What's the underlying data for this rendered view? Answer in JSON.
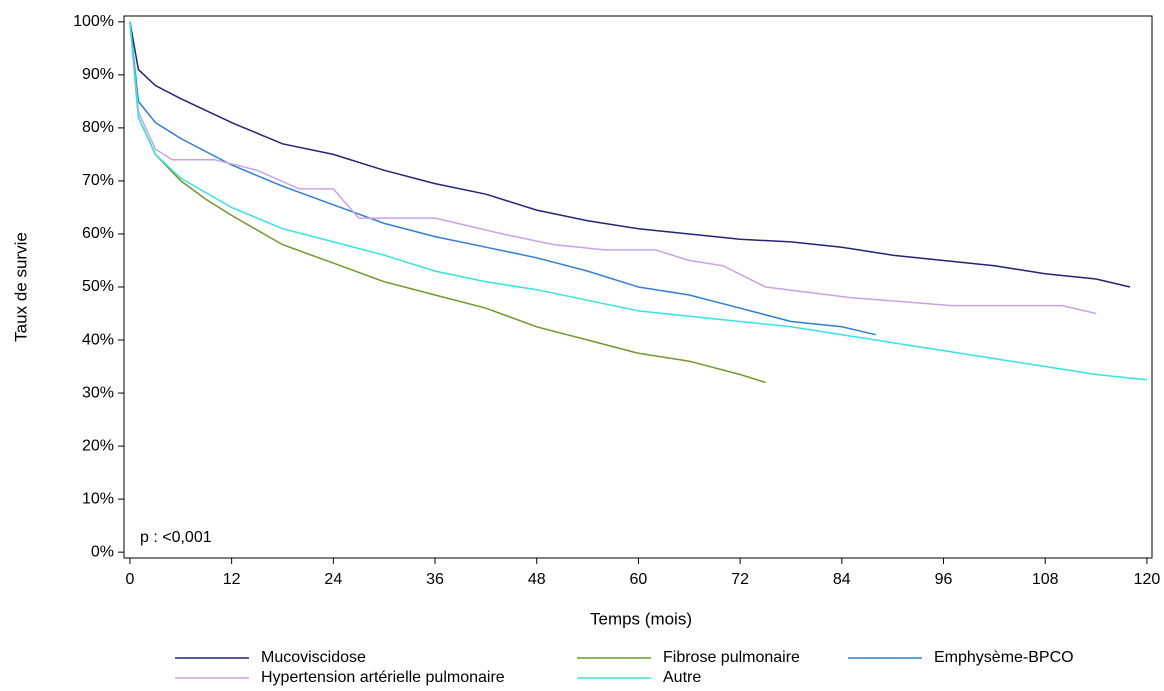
{
  "chart_data": {
    "type": "line",
    "xlabel": "Temps (mois)",
    "ylabel": "Taux de survie",
    "annotation": "p : <0,001",
    "xlim": [
      -0.7,
      120.6
    ],
    "ylim": [
      -1.1,
      101.1
    ],
    "xticks": [
      0,
      12,
      24,
      36,
      48,
      60,
      72,
      84,
      96,
      108,
      120
    ],
    "yticks": [
      {
        "value": 0,
        "label": "0%"
      },
      {
        "value": 10,
        "label": "10%"
      },
      {
        "value": 20,
        "label": "20%"
      },
      {
        "value": 30,
        "label": "30%"
      },
      {
        "value": 40,
        "label": "40%"
      },
      {
        "value": 50,
        "label": "50%"
      },
      {
        "value": 60,
        "label": "60%"
      },
      {
        "value": 70,
        "label": "70%"
      },
      {
        "value": 80,
        "label": "80%"
      },
      {
        "value": 90,
        "label": "90%"
      },
      {
        "value": 100,
        "label": "100%"
      }
    ],
    "series": [
      {
        "name": "Mucoviscidose",
        "color": "#23237a",
        "x": [
          0,
          1,
          3,
          6,
          12,
          18,
          24,
          30,
          36,
          42,
          48,
          54,
          60,
          66,
          72,
          78,
          84,
          90,
          96,
          102,
          108,
          114,
          118
        ],
        "values": [
          100,
          91,
          88,
          85.5,
          81,
          77,
          75,
          72,
          69.5,
          67.5,
          64.5,
          62.5,
          61,
          60,
          59,
          58.5,
          57.5,
          56,
          55,
          54,
          52.5,
          51.5,
          50
        ]
      },
      {
        "name": "Fibrose pulmonaire",
        "color": "#6e9a2a",
        "x": [
          0,
          1,
          3,
          6,
          9,
          12,
          18,
          24,
          30,
          36,
          42,
          48,
          54,
          60,
          66,
          72,
          75
        ],
        "values": [
          100,
          82,
          75,
          70,
          66.5,
          63.5,
          58,
          54.5,
          51,
          48.5,
          46,
          42.5,
          40,
          37.5,
          36,
          33.5,
          32
        ]
      },
      {
        "name": "Emphysème-BPCO",
        "color": "#2e7fd6",
        "x": [
          0,
          1,
          3,
          6,
          12,
          18,
          24,
          30,
          36,
          42,
          48,
          54,
          60,
          66,
          72,
          78,
          84,
          88
        ],
        "values": [
          100,
          85,
          81,
          78,
          73,
          69,
          65.5,
          62,
          59.5,
          57.5,
          55.5,
          53,
          50,
          48.5,
          46,
          43.5,
          42.5,
          41
        ]
      },
      {
        "name": "Hypertension artérielle pulmonaire",
        "color": "#c9a2e6",
        "x": [
          0,
          1,
          3,
          5,
          10,
          15,
          20,
          24,
          27,
          36,
          40,
          44,
          50,
          56,
          62,
          66,
          70,
          75,
          85,
          97,
          110,
          114
        ],
        "values": [
          100,
          83,
          76,
          74,
          74,
          72,
          68.5,
          68.5,
          63,
          63,
          61.5,
          60,
          58,
          57,
          57,
          55,
          54,
          50,
          48,
          46.5,
          46.5,
          45
        ]
      },
      {
        "name": "Autre",
        "color": "#33e3e6",
        "x": [
          0,
          1,
          3,
          6,
          12,
          18,
          24,
          30,
          36,
          42,
          48,
          54,
          60,
          66,
          72,
          78,
          84,
          90,
          96,
          102,
          108,
          114,
          120
        ],
        "values": [
          100,
          82,
          75,
          70.5,
          65,
          61,
          58.5,
          56,
          53,
          51,
          49.5,
          47.5,
          45.5,
          44.5,
          43.5,
          42.5,
          41,
          39.5,
          38,
          36.5,
          35,
          33.5,
          32.5
        ]
      }
    ]
  }
}
